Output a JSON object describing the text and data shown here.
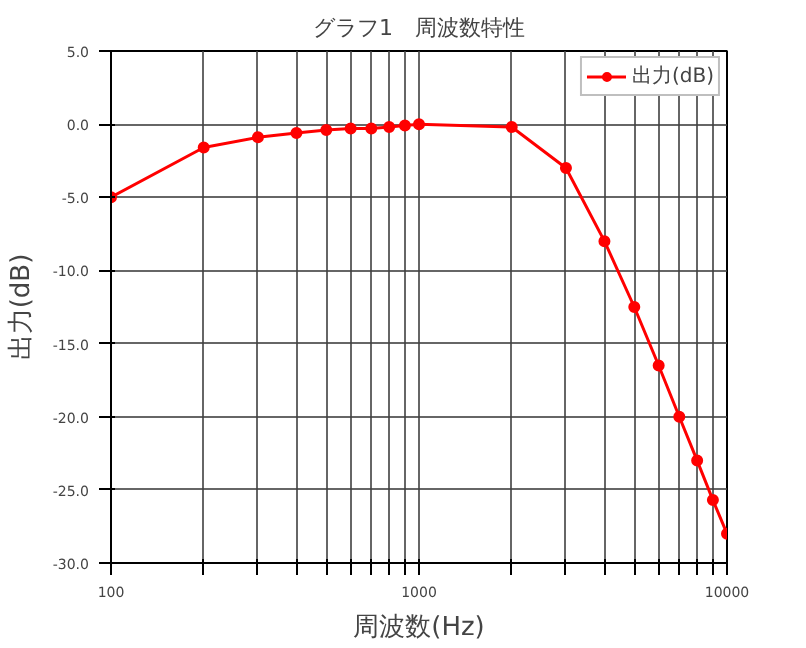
{
  "chart_data": {
    "type": "line",
    "title": "グラフ1　周波数特性",
    "xlabel": "周波数(Hz)",
    "ylabel": "出力(dB)",
    "x": [
      100,
      200,
      300,
      400,
      500,
      600,
      700,
      800,
      900,
      1000,
      2000,
      3000,
      4000,
      5000,
      6000,
      7000,
      8000,
      9000,
      10000
    ],
    "series": [
      {
        "name": "出力(dB)",
        "color": "#ff0000",
        "values": [
          -5.0,
          -1.6,
          -0.9,
          -0.6,
          -0.4,
          -0.3,
          -0.3,
          -0.2,
          -0.1,
          0.0,
          -0.2,
          -3.0,
          -8.0,
          -12.5,
          -16.5,
          -20.0,
          -23.0,
          -25.7,
          -28.0
        ]
      }
    ],
    "log": "x",
    "xlim": [
      100,
      10000
    ],
    "xticks": [
      100,
      {
        "value": 200,
        "label": null
      },
      {
        "value": 300,
        "label": null
      },
      {
        "value": 400,
        "label": null
      },
      {
        "value": 500,
        "label": null
      },
      {
        "value": 600,
        "label": null
      },
      {
        "value": 700,
        "label": null
      },
      {
        "value": 800,
        "label": null
      },
      {
        "value": 900,
        "label": null
      },
      1000,
      {
        "value": 2000,
        "label": null
      },
      {
        "value": 3000,
        "label": null
      },
      {
        "value": 4000,
        "label": null
      },
      {
        "value": 5000,
        "label": null
      },
      {
        "value": 6000,
        "label": null
      },
      {
        "value": 7000,
        "label": null
      },
      {
        "value": 8000,
        "label": null
      },
      {
        "value": 9000,
        "label": null
      },
      10000
    ],
    "ylim": [
      -30,
      5
    ],
    "yticks": [
      {
        "value": 5,
        "label": "5.0"
      },
      {
        "value": 0,
        "label": "0.0"
      },
      {
        "value": -5,
        "label": "-5.0"
      },
      {
        "value": -10,
        "label": "-10.0"
      },
      {
        "value": -15,
        "label": "-15.0"
      },
      {
        "value": -20,
        "label": "-20.0"
      },
      {
        "value": -25,
        "label": "-25.0"
      },
      {
        "value": -30,
        "label": "-30.0"
      }
    ],
    "grid": true,
    "legend": "top right",
    "marker": "circle",
    "line_style": "solid"
  }
}
